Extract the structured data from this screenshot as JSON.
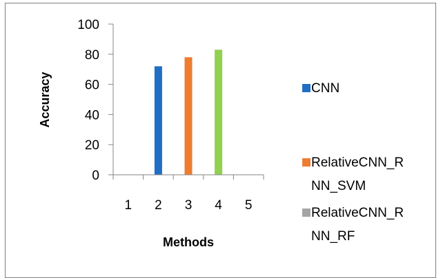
{
  "chart_data": {
    "type": "bar",
    "categories": [
      "1",
      "2",
      "3",
      "4",
      "5"
    ],
    "series": [
      {
        "name": "CNN",
        "legend_lines": [
          "CNN"
        ],
        "color": "#1F6FC5",
        "category_index": 1,
        "value": 72
      },
      {
        "name": "RelativeCNN_RNN_SVM",
        "legend_lines": [
          "RelativeCNN_R",
          "NN_SVM"
        ],
        "color": "#ED7D31",
        "category_index": 2,
        "value": 78
      },
      {
        "name": "RelativeCNN_RNN_RF",
        "legend_lines": [
          "RelativeCNN_R",
          "NN_RF"
        ],
        "color": "#A5A5A5",
        "category_index": null,
        "value": null
      },
      {
        "name": "",
        "legend_lines": [],
        "color": "#92D050",
        "category_index": 3,
        "value": 83
      }
    ],
    "xlabel": "Methods",
    "ylabel": "Accuracy",
    "ylim": [
      0,
      100
    ],
    "yticks": [
      0,
      20,
      40,
      60,
      80,
      100
    ],
    "grid": false,
    "legend_position": "right"
  }
}
